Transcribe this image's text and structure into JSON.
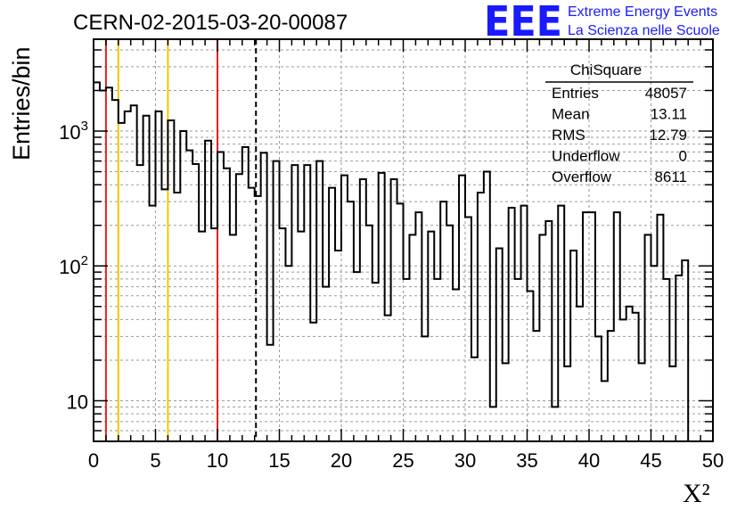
{
  "chart_data": {
    "type": "histogram",
    "title": "CERN-02-2015-03-20-00087",
    "xlabel": "X²",
    "ylabel": "Entries/bin",
    "xlim": [
      0,
      50
    ],
    "ylim": [
      5,
      4800
    ],
    "yscale": "log",
    "grid": true,
    "x_ticks": [
      "0",
      "5",
      "10",
      "15",
      "20",
      "25",
      "30",
      "35",
      "40",
      "45",
      "50"
    ],
    "y_ticks": [
      {
        "value": 10,
        "label": "10"
      },
      {
        "value": 100,
        "label": "10",
        "exp": "2"
      },
      {
        "value": 1000,
        "label": "10",
        "exp": "3"
      }
    ],
    "bin_width": 0.5,
    "values": [
      2300,
      2000,
      2100,
      1700,
      1150,
      1400,
      1550,
      560,
      1300,
      280,
      1400,
      370,
      1200,
      350,
      1000,
      720,
      570,
      180,
      850,
      190,
      700,
      530,
      170,
      480,
      760,
      380,
      330,
      690,
      26,
      600,
      190,
      100,
      560,
      180,
      560,
      38,
      600,
      70,
      380,
      130,
      470,
      300,
      90,
      440,
      200,
      75,
      490,
      43,
      440,
      290,
      80,
      170,
      250,
      30,
      180,
      80,
      300,
      200,
      67,
      470,
      230,
      21,
      350,
      500,
      9,
      135,
      19,
      270,
      80,
      280,
      65,
      33,
      170,
      215,
      9,
      280,
      18,
      130,
      50,
      250,
      250,
      30,
      14,
      33,
      250,
      40,
      50,
      45,
      19,
      170,
      100,
      240,
      80,
      18,
      85,
      110
    ],
    "vertical_lines": [
      {
        "x": 1,
        "color": "#e0241d",
        "style": "solid"
      },
      {
        "x": 2,
        "color": "#f2c500",
        "style": "solid"
      },
      {
        "x": 6,
        "color": "#f2c500",
        "style": "solid"
      },
      {
        "x": 10,
        "color": "#e0241d",
        "style": "solid"
      },
      {
        "x": 13.11,
        "color": "#000000",
        "style": "dashed"
      }
    ],
    "legend_position": "top-right"
  },
  "stats_box": {
    "title": "ChiSquare",
    "rows": [
      {
        "label": "Entries",
        "value": "48057"
      },
      {
        "label": "Mean",
        "value": "13.11"
      },
      {
        "label": "RMS",
        "value": "12.79"
      },
      {
        "label": "Underflow",
        "value": "0"
      },
      {
        "label": "Overflow",
        "value": "8611"
      }
    ]
  },
  "logo": {
    "mark": "EEE",
    "line1": "Extreme Energy Events",
    "line2": "La Scienza nelle Scuole",
    "color": "#1a1aff"
  }
}
